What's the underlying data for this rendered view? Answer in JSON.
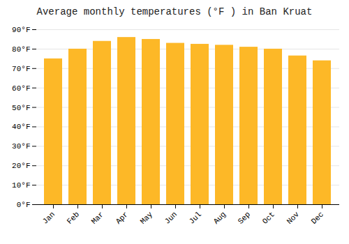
{
  "chart_data": {
    "type": "bar",
    "title": "Average monthly temperatures (°F ) in Ban Kruat",
    "categories": [
      "Jan",
      "Feb",
      "Mar",
      "Apr",
      "May",
      "Jun",
      "Jul",
      "Aug",
      "Sep",
      "Oct",
      "Nov",
      "Dec"
    ],
    "values": [
      75,
      80,
      84,
      86,
      85,
      83,
      82.5,
      82,
      81,
      80,
      76.5,
      74
    ],
    "color": "#FDB827",
    "ylim": [
      0,
      90
    ],
    "yticks": [
      {
        "value": 0,
        "label": "0°F"
      },
      {
        "value": 10,
        "label": "10°F"
      },
      {
        "value": 20,
        "label": "20°F"
      },
      {
        "value": 30,
        "label": "30°F"
      },
      {
        "value": 40,
        "label": "40°F"
      },
      {
        "value": 50,
        "label": "50°F"
      },
      {
        "value": 60,
        "label": "60°F"
      },
      {
        "value": 70,
        "label": "70°F"
      },
      {
        "value": 80,
        "label": "80°F"
      },
      {
        "value": 90,
        "label": "90°F"
      }
    ],
    "grid": true
  }
}
